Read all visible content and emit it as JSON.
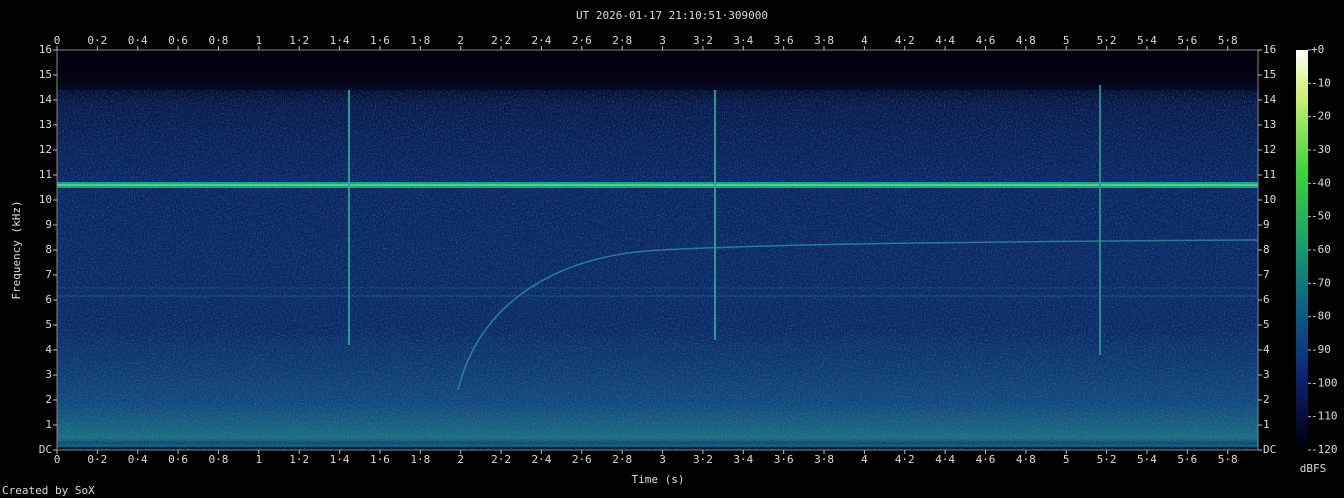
{
  "chart_data": {
    "type": "spectrogram",
    "title": "UT 2026-01-17 21:10:51·309000",
    "x_label": "Time (s)",
    "y_label": "Frequency (kHz)",
    "xlim": [
      0,
      5.95
    ],
    "xticks": [
      0,
      {
        "value": 0.2,
        "label": "0·2"
      },
      {
        "value": 0.4,
        "label": "0·4"
      },
      {
        "value": 0.6,
        "label": "0·6"
      },
      {
        "value": 0.8,
        "label": "0·8"
      },
      1,
      {
        "value": 1.2,
        "label": "1·2"
      },
      {
        "value": 1.4,
        "label": "1·4"
      },
      {
        "value": 1.6,
        "label": "1·6"
      },
      {
        "value": 1.8,
        "label": "1·8"
      },
      2,
      {
        "value": 2.2,
        "label": "2·2"
      },
      {
        "value": 2.4,
        "label": "2·4"
      },
      {
        "value": 2.6,
        "label": "2·6"
      },
      {
        "value": 2.8,
        "label": "2·8"
      },
      3,
      {
        "value": 3.2,
        "label": "3·2"
      },
      {
        "value": 3.4,
        "label": "3·4"
      },
      {
        "value": 3.6,
        "label": "3·6"
      },
      {
        "value": 3.8,
        "label": "3·8"
      },
      4,
      {
        "value": 4.2,
        "label": "4·2"
      },
      {
        "value": 4.4,
        "label": "4·4"
      },
      {
        "value": 4.6,
        "label": "4·6"
      },
      {
        "value": 4.8,
        "label": "4·8"
      },
      5,
      {
        "value": 5.2,
        "label": "5·2"
      },
      {
        "value": 5.4,
        "label": "5·4"
      },
      {
        "value": 5.6,
        "label": "5·6"
      },
      {
        "value": 5.8,
        "label": "5·8"
      }
    ],
    "ylim": [
      0,
      16
    ],
    "yticks": [
      {
        "value": 0,
        "label": "DC"
      },
      1,
      2,
      3,
      4,
      5,
      6,
      7,
      8,
      9,
      10,
      11,
      12,
      13,
      14,
      15,
      16
    ],
    "colorbar": {
      "label": "dBFS",
      "lim": [
        -120,
        0
      ],
      "ticks": [
        {
          "value": 0,
          "label": "+0"
        },
        -10,
        -20,
        -30,
        -40,
        -50,
        -60,
        -70,
        -80,
        -90,
        -100,
        -110,
        -120
      ]
    },
    "credit": "Created by SoX"
  }
}
